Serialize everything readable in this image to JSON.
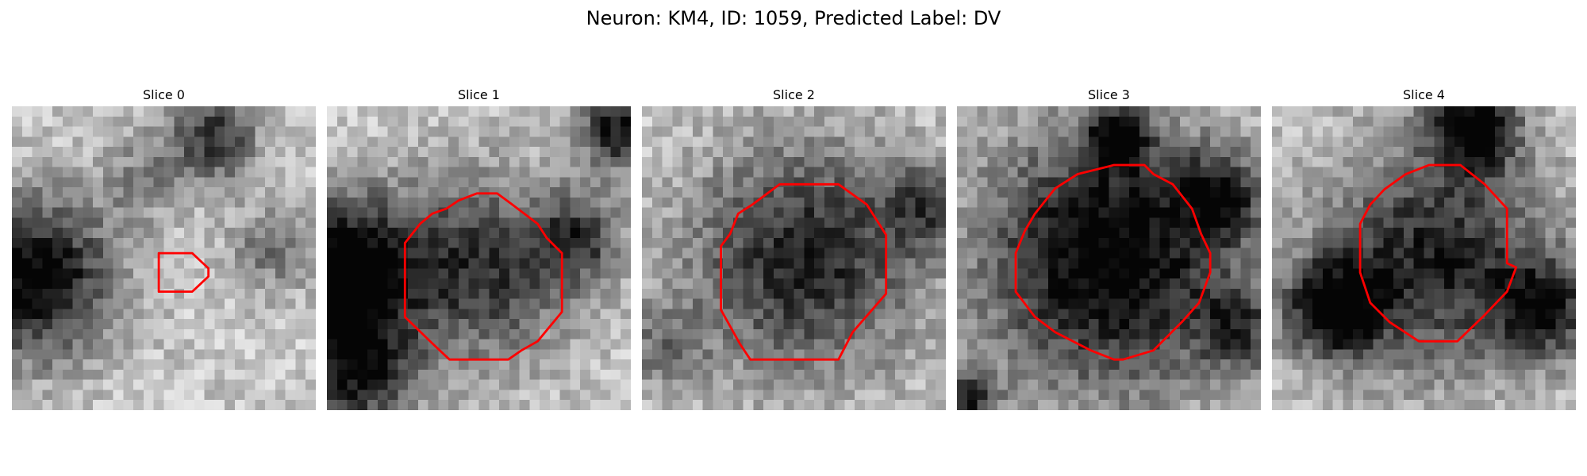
{
  "title": "Neuron: KM4, ID: 1059, Predicted Label: DV",
  "overlay_color": "#ff0000",
  "panels": [
    {
      "label": "Slice 0"
    },
    {
      "label": "Slice 1"
    },
    {
      "label": "Slice 2"
    },
    {
      "label": "Slice 3"
    },
    {
      "label": "Slice 4"
    }
  ]
}
